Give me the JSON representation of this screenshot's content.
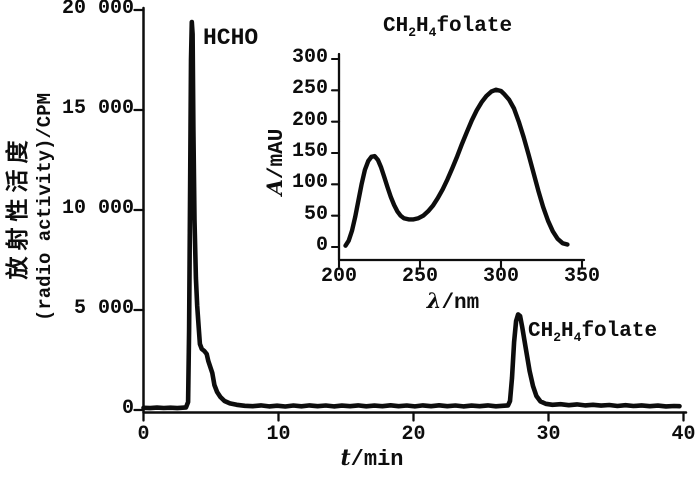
{
  "figure": {
    "background": "#ffffff",
    "ink": "#0d0d0d"
  },
  "main_chart": {
    "ylabel_cn": "放射性活度",
    "ylabel_en": "(radio activity)/CPM",
    "xlabel_symbol": "t",
    "xlabel_rest": "/min",
    "peak1_label": "HCHO",
    "peak2_label": {
      "p1": "CH",
      "s1": "2",
      "p2": "H",
      "s2": "4",
      "p3": "folate"
    }
  },
  "inset_chart": {
    "title": {
      "p1": "CH",
      "s1": "2",
      "p2": "H",
      "s2": "4",
      "p3": "folate"
    },
    "ylabel_symbol": "A",
    "ylabel_rest": "/mAU",
    "xlabel_symbol": "λ",
    "xlabel_rest": "/nm"
  },
  "chart_data": [
    {
      "id": "chromatogram",
      "type": "line",
      "title": "",
      "xlabel": "t/min",
      "ylabel": "放射性活度 (radio activity)/CPM",
      "xlim": [
        0,
        40
      ],
      "ylim": [
        0,
        20000
      ],
      "xticks": [
        0,
        10,
        20,
        30,
        40
      ],
      "xtick_labels": [
        "0",
        "10",
        "20",
        "30",
        "40"
      ],
      "yticks": [
        0,
        5000,
        10000,
        15000,
        20000
      ],
      "ytick_labels": [
        "0",
        "5 000",
        "10 000",
        "15 000",
        "20 000"
      ],
      "grid": false,
      "legend": false,
      "annotations": [
        {
          "text": "HCHO",
          "x": 4.5,
          "y": 19200
        },
        {
          "text": "CH2H4folate",
          "x": 28.5,
          "y": 4400
        }
      ],
      "series": [
        {
          "name": "radioactivity",
          "points": [
            [
              0,
              110
            ],
            [
              0.5,
              95
            ],
            [
              1,
              120
            ],
            [
              1.5,
              100
            ],
            [
              2,
              115
            ],
            [
              2.5,
              95
            ],
            [
              2.9,
              115
            ],
            [
              3.15,
              130
            ],
            [
              3.3,
              400
            ],
            [
              3.38,
              4000
            ],
            [
              3.45,
              11000
            ],
            [
              3.52,
              17500
            ],
            [
              3.58,
              19400
            ],
            [
              3.64,
              18800
            ],
            [
              3.7,
              14000
            ],
            [
              3.78,
              9500
            ],
            [
              3.88,
              6600
            ],
            [
              3.98,
              5200
            ],
            [
              4.08,
              4200
            ],
            [
              4.18,
              3300
            ],
            [
              4.32,
              3050
            ],
            [
              4.5,
              2950
            ],
            [
              4.68,
              2800
            ],
            [
              4.8,
              2450
            ],
            [
              4.95,
              2150
            ],
            [
              5.1,
              1850
            ],
            [
              5.25,
              1250
            ],
            [
              5.45,
              900
            ],
            [
              5.7,
              650
            ],
            [
              6,
              450
            ],
            [
              6.4,
              330
            ],
            [
              6.9,
              260
            ],
            [
              7.5,
              210
            ],
            [
              8.1,
              190
            ],
            [
              8.7,
              230
            ],
            [
              9.3,
              180
            ],
            [
              9.9,
              215
            ],
            [
              10.5,
              175
            ],
            [
              11.1,
              225
            ],
            [
              11.7,
              185
            ],
            [
              12.3,
              230
            ],
            [
              12.9,
              190
            ],
            [
              13.5,
              225
            ],
            [
              14.1,
              180
            ],
            [
              14.7,
              220
            ],
            [
              15.3,
              190
            ],
            [
              15.9,
              230
            ],
            [
              16.5,
              185
            ],
            [
              17.1,
              220
            ],
            [
              17.7,
              190
            ],
            [
              18.3,
              235
            ],
            [
              18.9,
              190
            ],
            [
              19.5,
              225
            ],
            [
              20.1,
              180
            ],
            [
              20.7,
              230
            ],
            [
              21.3,
              190
            ],
            [
              21.9,
              235
            ],
            [
              22.5,
              190
            ],
            [
              23.1,
              225
            ],
            [
              23.7,
              180
            ],
            [
              24.3,
              220
            ],
            [
              24.9,
              190
            ],
            [
              25.5,
              230
            ],
            [
              26.1,
              185
            ],
            [
              26.6,
              210
            ],
            [
              27,
              230
            ],
            [
              27.15,
              450
            ],
            [
              27.3,
              1600
            ],
            [
              27.45,
              3400
            ],
            [
              27.6,
              4450
            ],
            [
              27.75,
              4780
            ],
            [
              27.9,
              4700
            ],
            [
              28.05,
              4150
            ],
            [
              28.2,
              3550
            ],
            [
              28.4,
              2750
            ],
            [
              28.6,
              1950
            ],
            [
              28.85,
              1200
            ],
            [
              29.1,
              700
            ],
            [
              29.4,
              430
            ],
            [
              29.8,
              310
            ],
            [
              30.3,
              260
            ],
            [
              30.9,
              290
            ],
            [
              31.5,
              240
            ],
            [
              32.1,
              280
            ],
            [
              32.7,
              230
            ],
            [
              33.3,
              260
            ],
            [
              33.9,
              220
            ],
            [
              34.5,
              250
            ],
            [
              35.1,
              200
            ],
            [
              35.7,
              240
            ],
            [
              36.3,
              200
            ],
            [
              36.9,
              230
            ],
            [
              37.5,
              190
            ],
            [
              38.1,
              220
            ],
            [
              38.7,
              180
            ],
            [
              39.3,
              200
            ],
            [
              39.7,
              190
            ]
          ]
        }
      ]
    },
    {
      "id": "uv-absorption-spectrum",
      "type": "line",
      "title": "CH2H4folate",
      "xlabel": "λ/nm",
      "ylabel": "A/mAU",
      "xlim": [
        200,
        350
      ],
      "ylim": [
        0,
        300
      ],
      "xticks": [
        200,
        250,
        300,
        350
      ],
      "xtick_labels": [
        "200",
        "250",
        "300",
        "350"
      ],
      "yticks": [
        0,
        50,
        100,
        150,
        200,
        250,
        300
      ],
      "ytick_labels": [
        "0",
        "50",
        "100",
        "150",
        "200",
        "250",
        "300"
      ],
      "grid": false,
      "legend": false,
      "series": [
        {
          "name": "absorbance",
          "points": [
            [
              204,
              2
            ],
            [
              206,
              10
            ],
            [
              208,
              26
            ],
            [
              210,
              48
            ],
            [
              212,
              74
            ],
            [
              214,
              101
            ],
            [
              216,
              123
            ],
            [
              218,
              137
            ],
            [
              220,
              144
            ],
            [
              222,
              145
            ],
            [
              224,
              139
            ],
            [
              226,
              127
            ],
            [
              228,
              111
            ],
            [
              230,
              95
            ],
            [
              232,
              80
            ],
            [
              234,
              67
            ],
            [
              236,
              57
            ],
            [
              238,
              50
            ],
            [
              240,
              46
            ],
            [
              243,
              44
            ],
            [
              246,
              44
            ],
            [
              249,
              46
            ],
            [
              252,
              50
            ],
            [
              255,
              57
            ],
            [
              258,
              66
            ],
            [
              261,
              78
            ],
            [
              264,
              92
            ],
            [
              267,
              108
            ],
            [
              270,
              126
            ],
            [
              273,
              145
            ],
            [
              276,
              165
            ],
            [
              279,
              184
            ],
            [
              282,
              202
            ],
            [
              285,
              218
            ],
            [
              288,
              231
            ],
            [
              291,
              241
            ],
            [
              294,
              248
            ],
            [
              297,
              251
            ],
            [
              300,
              249
            ],
            [
              302,
              244
            ],
            [
              305,
              235
            ],
            [
              308,
              221
            ],
            [
              311,
              200
            ],
            [
              314,
              175
            ],
            [
              317,
              148
            ],
            [
              320,
              119
            ],
            [
              323,
              90
            ],
            [
              326,
              64
            ],
            [
              329,
              42
            ],
            [
              332,
              25
            ],
            [
              335,
              13
            ],
            [
              338,
              6
            ],
            [
              341,
              4
            ]
          ]
        }
      ]
    }
  ]
}
